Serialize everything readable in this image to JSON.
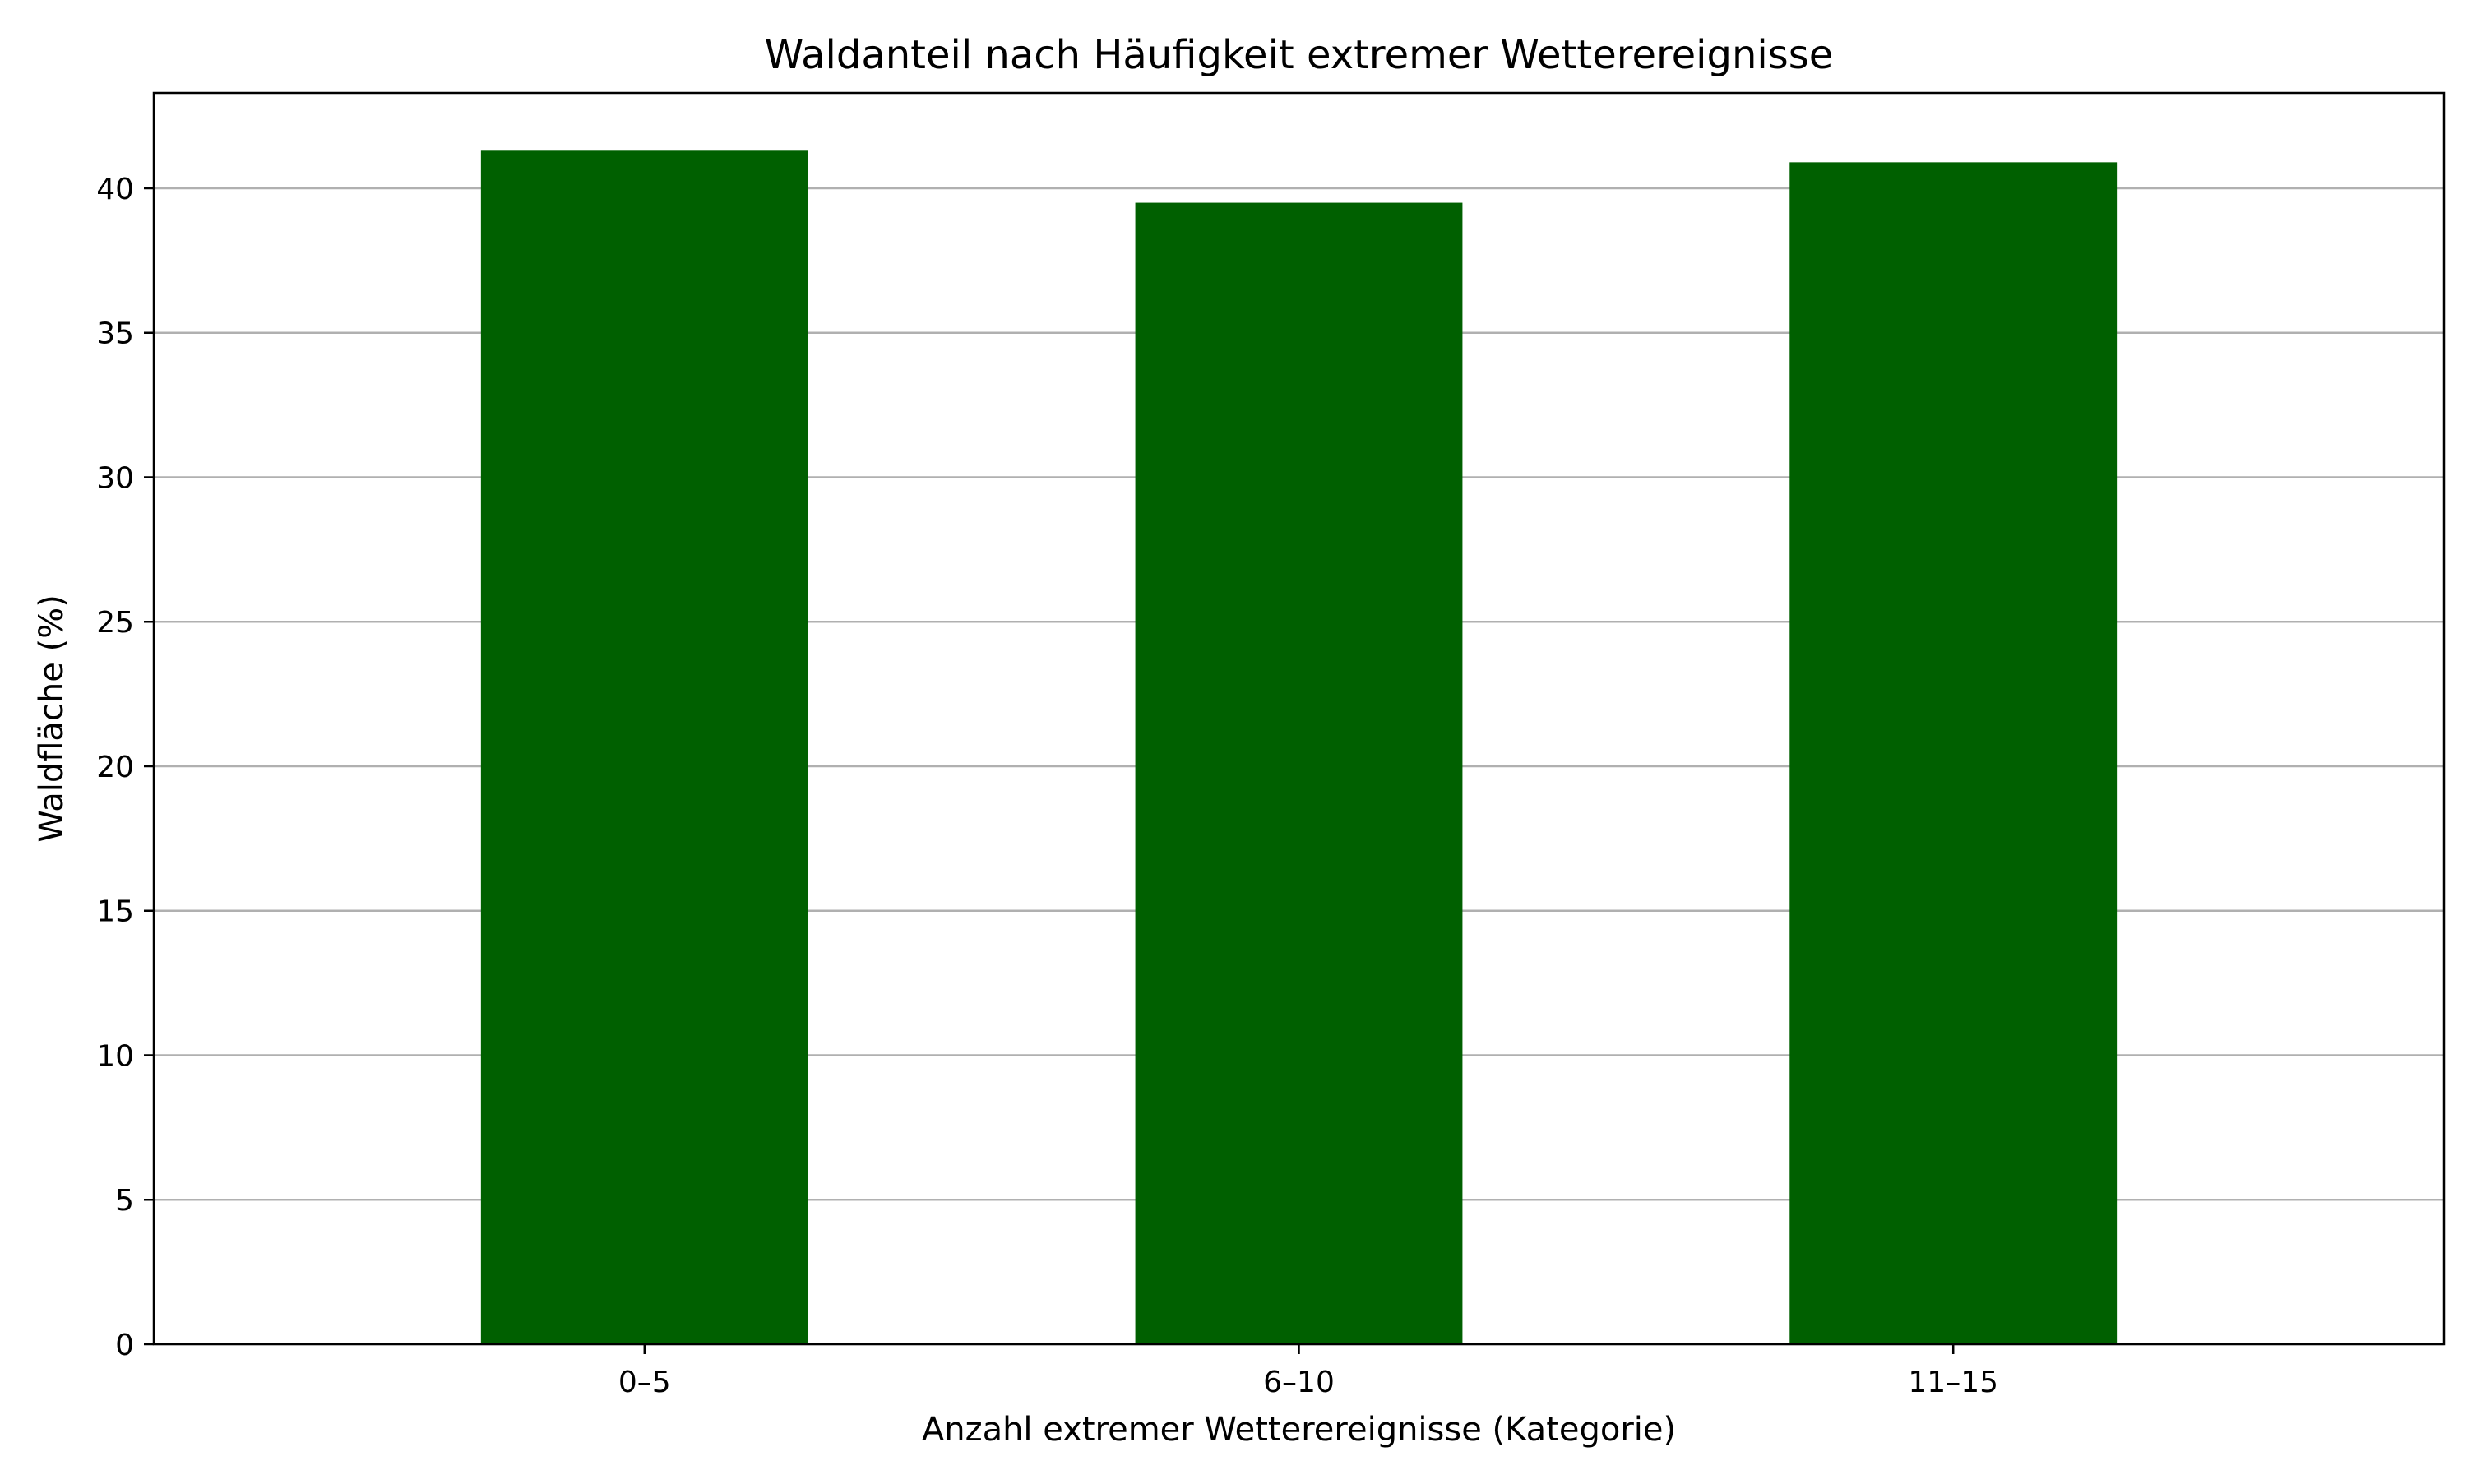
{
  "chart_data": {
    "type": "bar",
    "title": "Waldanteil nach Häufigkeit extremer Wetterereignisse",
    "xlabel": "Anzahl extremer Wetterereignisse (Kategorie)",
    "ylabel": "Waldfläche (%)",
    "categories": [
      "0–5",
      "6–10",
      "11–15"
    ],
    "values": [
      41.3,
      39.5,
      40.9
    ],
    "ylim": [
      0,
      43.3
    ],
    "yticks": [
      0,
      5,
      10,
      15,
      20,
      25,
      30,
      35,
      40
    ],
    "grid": "y-major",
    "bar_color": "#006000",
    "grid_color": "#b0b0b0"
  }
}
